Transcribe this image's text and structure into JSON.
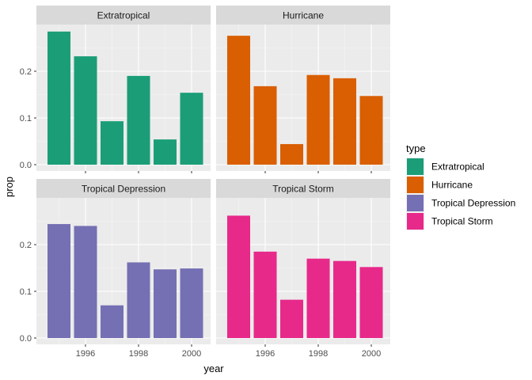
{
  "chart_data": {
    "type": "bar",
    "facets": [
      "Extratropical",
      "Hurricane",
      "Tropical Depression",
      "Tropical Storm"
    ],
    "x": [
      1995,
      1996,
      1997,
      1998,
      1999,
      2000
    ],
    "xticks": [
      1996,
      1998,
      2000
    ],
    "xtick_labels": [
      "1996",
      "1998",
      "2000"
    ],
    "yticks": [
      0.0,
      0.1,
      0.2
    ],
    "ytick_labels": [
      "0.0",
      "0.1",
      "0.2"
    ],
    "xlabel": "year",
    "ylabel": "prop",
    "ylim": [
      0,
      0.3
    ],
    "grid": true,
    "series": [
      {
        "name": "Extratropical",
        "color": "#1B9E77",
        "values": [
          0.285,
          0.232,
          0.093,
          0.19,
          0.054,
          0.154
        ]
      },
      {
        "name": "Hurricane",
        "color": "#D95F02",
        "values": [
          0.276,
          0.168,
          0.044,
          0.192,
          0.185,
          0.147
        ]
      },
      {
        "name": "Tropical Depression",
        "color": "#7570B3",
        "values": [
          0.244,
          0.24,
          0.07,
          0.162,
          0.147,
          0.149
        ]
      },
      {
        "name": "Tropical Storm",
        "color": "#E7298A",
        "values": [
          0.262,
          0.185,
          0.082,
          0.17,
          0.165,
          0.152
        ]
      }
    ],
    "legend": {
      "title": "type",
      "position": "right",
      "items": [
        {
          "label": "Extratropical",
          "color": "#1B9E77"
        },
        {
          "label": "Hurricane",
          "color": "#D95F02"
        },
        {
          "label": "Tropical Depression",
          "color": "#7570B3"
        },
        {
          "label": "Tropical Storm",
          "color": "#E7298A"
        }
      ]
    }
  }
}
